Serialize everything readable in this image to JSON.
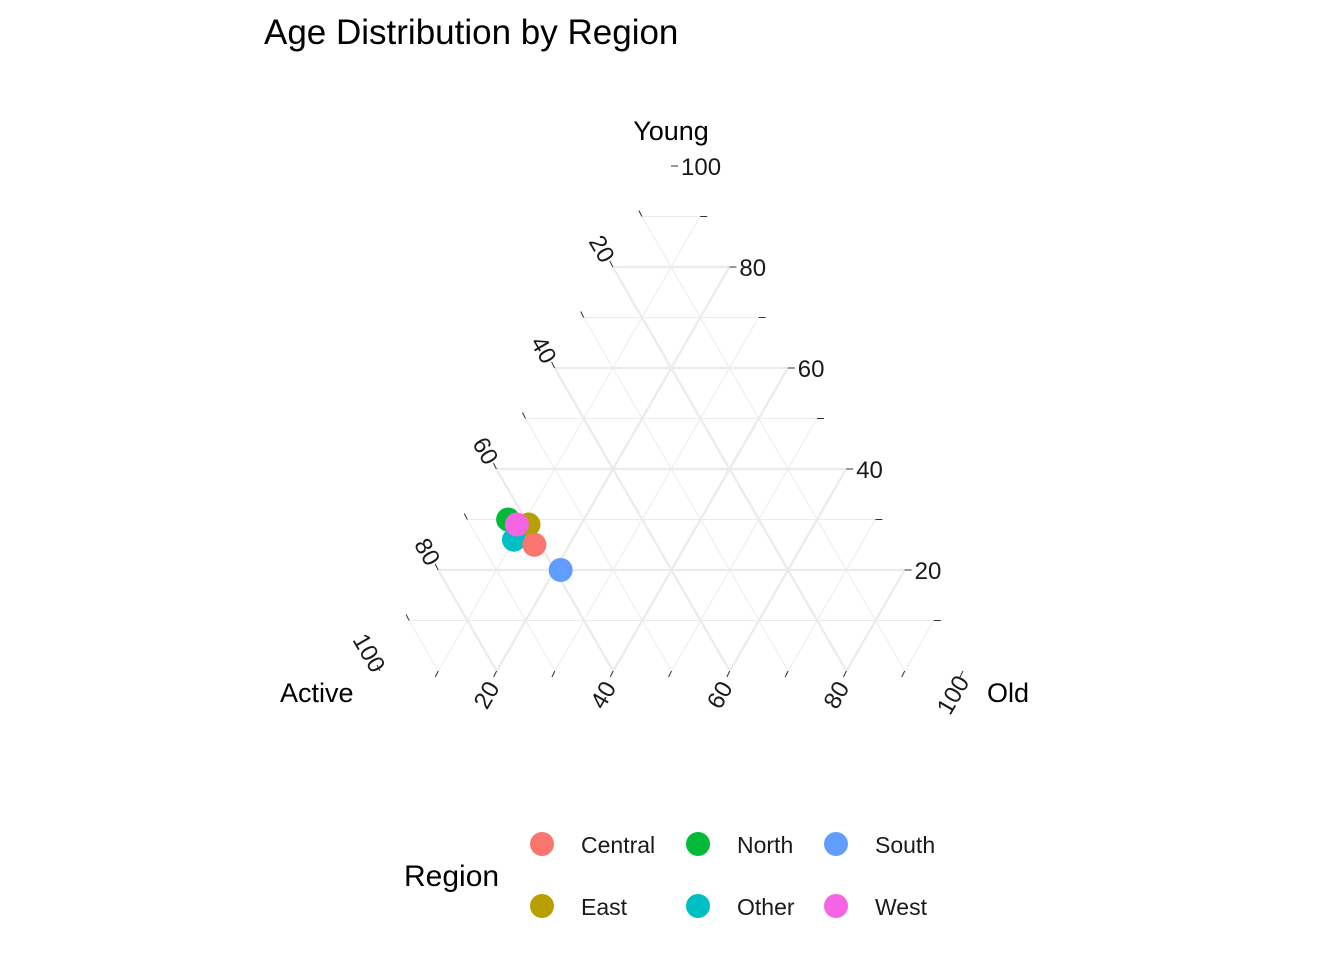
{
  "chart_data": {
    "type": "ternary",
    "title": "Age Distribution by Region",
    "axes": {
      "left": {
        "label": "Active",
        "ticks": [
          20,
          40,
          60,
          80,
          100
        ]
      },
      "top": {
        "label": "Young",
        "ticks": [
          20,
          40,
          60,
          80,
          100
        ]
      },
      "right": {
        "label": "Old",
        "ticks": [
          20,
          40,
          60,
          80,
          100
        ]
      }
    },
    "range": [
      0,
      100
    ],
    "grid": true,
    "legend": {
      "title": "Region",
      "position": "bottom",
      "entries": [
        {
          "name": "Central",
          "color": "#F8766D"
        },
        {
          "name": "North",
          "color": "#00BA38"
        },
        {
          "name": "South",
          "color": "#619CFF"
        },
        {
          "name": "East",
          "color": "#B79F00"
        },
        {
          "name": "Other",
          "color": "#00BFC4"
        },
        {
          "name": "West",
          "color": "#F564E3"
        }
      ]
    },
    "points": [
      {
        "region": "North",
        "active": 63,
        "young": 30,
        "old": 7,
        "color": "#00BA38"
      },
      {
        "region": "East",
        "active": 60,
        "young": 29,
        "old": 11,
        "color": "#B79F00"
      },
      {
        "region": "Other",
        "active": 64,
        "young": 26,
        "old": 10,
        "color": "#00BFC4"
      },
      {
        "region": "Central",
        "active": 61,
        "young": 25,
        "old": 14,
        "color": "#F8766D"
      },
      {
        "region": "South",
        "active": 59,
        "young": 20,
        "old": 21,
        "color": "#619CFF"
      },
      {
        "region": "West",
        "active": 62,
        "young": 29,
        "old": 9,
        "color": "#F564E3"
      }
    ]
  }
}
